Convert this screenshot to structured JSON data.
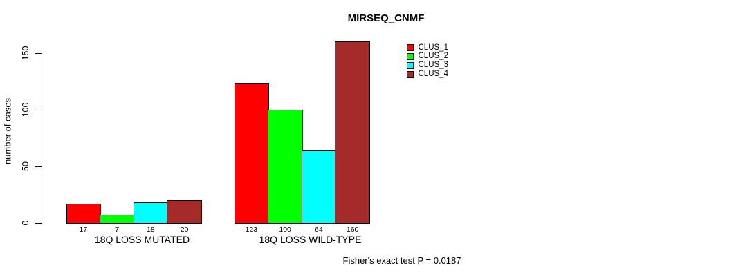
{
  "chart_data": {
    "type": "bar",
    "title": "MIRSEQ_CNMF",
    "ylabel": "number of cases",
    "xlabel": "",
    "categories": [
      "18Q LOSS MUTATED",
      "18Q LOSS WILD-TYPE"
    ],
    "series": [
      {
        "name": "CLUS_1",
        "color": "#FF0000",
        "values": [
          17,
          123
        ]
      },
      {
        "name": "CLUS_2",
        "color": "#00FF00",
        "values": [
          7,
          100
        ]
      },
      {
        "name": "CLUS_3",
        "color": "#00FFFF",
        "values": [
          18,
          64
        ]
      },
      {
        "name": "CLUS_4",
        "color": "#A52A2A",
        "values": [
          20,
          160
        ]
      }
    ],
    "bar_value_labels": [
      [
        17,
        7,
        18,
        20
      ],
      [
        123,
        100,
        64,
        160
      ]
    ],
    "yticks": [
      0,
      50,
      100,
      150
    ],
    "ylim": [
      0,
      160
    ],
    "grid": false,
    "legend_position": "top-right",
    "annotation": "Fisher's exact test P = 0.0187"
  },
  "colors": {
    "axis": "#000000",
    "bar_border": "#000000",
    "text": "#000000",
    "background": "#FFFFFF"
  }
}
